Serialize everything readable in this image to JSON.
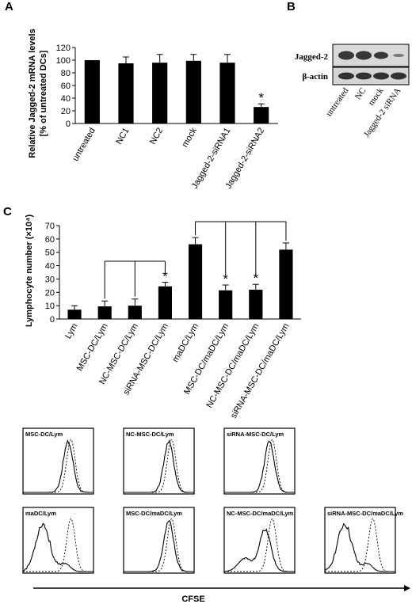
{
  "panels": {
    "a": "A",
    "b": "B",
    "c": "C"
  },
  "chart_data": [
    {
      "type": "bar",
      "panel": "A",
      "ylabel_line1": "Relative Jagged-2 mRNA levels",
      "ylabel_line2": "[% of untreated DCs]",
      "categories": [
        "untreated",
        "NC1",
        "NC2",
        "mock",
        "Jagged-2-siRNA1",
        "Jagged-2-siRNA2"
      ],
      "values": [
        100,
        95,
        96,
        99,
        96,
        26
      ],
      "errors": [
        0,
        10,
        13,
        10,
        13,
        5
      ],
      "significance": [
        "",
        "",
        "",
        "",
        "",
        "*"
      ],
      "ylim": [
        0,
        120
      ],
      "yticks": [
        0,
        20,
        40,
        60,
        80,
        100,
        120
      ]
    },
    {
      "type": "table",
      "panel": "B",
      "rows": [
        "Jagged-2",
        "β-actin"
      ],
      "lanes": [
        "untreated",
        "NC",
        "mock",
        "Jagged-2 siRNA"
      ]
    },
    {
      "type": "bar",
      "panel": "C",
      "ylabel": "Lymphocyte number (×10⁴)",
      "categories": [
        "Lym",
        "MSC-DC/Lym",
        "NC-MSC-DC/Lym",
        "siRNA-MSC-DC/Lym",
        "maDC/Lym",
        "MSC-DC/maDC/Lym",
        "NC-MSC-DC/maDC/Lym",
        "siRNA-MSC-DC/maDC/Lym"
      ],
      "values": [
        7,
        9.5,
        10,
        24.5,
        56,
        21.5,
        22,
        52
      ],
      "errors": [
        3,
        4,
        5,
        3,
        5,
        4,
        4,
        5
      ],
      "significance": [
        "",
        "",
        "",
        "*",
        "",
        "*",
        "*",
        ""
      ],
      "ylim": [
        0,
        70
      ],
      "yticks": [
        0,
        10,
        20,
        30,
        40,
        50,
        60,
        70
      ]
    }
  ],
  "histograms": {
    "xlabel": "CFSE",
    "row1": [
      "MSC-DC/Lym",
      "NC-MSC-DC/Lym",
      "siRNA-MSC-DC/Lym"
    ],
    "row2": [
      "maDC/Lym",
      "MSC-DC/maDC/Lym",
      "NC-MSC-DC/maDC/Lym",
      "siRNA-MSC-DC/maDC/Lym"
    ]
  }
}
